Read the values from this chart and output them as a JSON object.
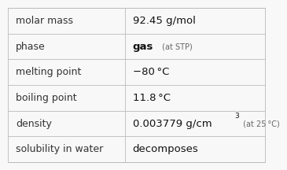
{
  "rows": [
    {
      "label": "molar mass",
      "value_parts": [
        {
          "text": "92.45 g/mol",
          "style": "normal",
          "size": 9.5
        }
      ]
    },
    {
      "label": "phase",
      "value_parts": [
        {
          "text": "gas",
          "style": "bold",
          "size": 9.5
        },
        {
          "text": " (at STP)",
          "style": "small",
          "size": 7.0
        }
      ]
    },
    {
      "label": "melting point",
      "value_parts": [
        {
          "text": "−80 °C",
          "style": "normal",
          "size": 9.5
        }
      ]
    },
    {
      "label": "boiling point",
      "value_parts": [
        {
          "text": "11.8 °C",
          "style": "normal",
          "size": 9.5
        }
      ]
    },
    {
      "label": "density",
      "value_parts": [
        {
          "text": "0.003779 g/cm",
          "style": "normal",
          "size": 9.5
        },
        {
          "text": "3",
          "style": "super",
          "size": 6.5
        },
        {
          "text": " (at 25 °C)",
          "style": "small",
          "size": 7.0
        }
      ]
    },
    {
      "label": "solubility in water",
      "value_parts": [
        {
          "text": "decomposes",
          "style": "normal",
          "size": 9.5
        }
      ]
    }
  ],
  "label_fontsize": 9.0,
  "col_split": 0.455,
  "bg_color": "#f8f8f8",
  "line_color": "#bbbbbb",
  "label_color": "#333333",
  "value_color": "#111111",
  "small_color": "#666666"
}
